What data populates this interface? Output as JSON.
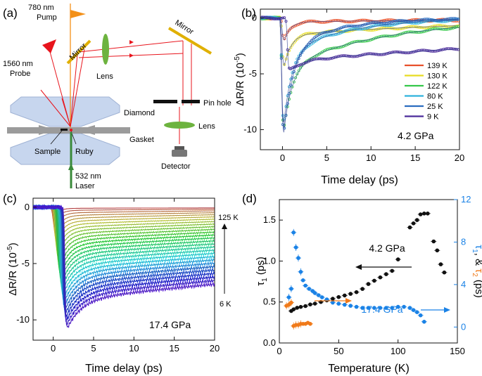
{
  "panels": {
    "a": {
      "letter": "(a)",
      "labels": {
        "pump": [
          "780 nm",
          "Pump"
        ],
        "probe": [
          "1560 nm",
          "Probe"
        ],
        "mirror_left": "Mirror",
        "mirror_right": "Mirror",
        "lens_top": "Lens",
        "lens_right": "Lens",
        "pin_hole": "Pin hole",
        "diamond": "Diamond",
        "gasket": "Gasket",
        "sample": "Sample",
        "ruby": "Ruby",
        "laser": [
          "532 nm",
          "Laser"
        ],
        "detector": "Detector"
      },
      "colors": {
        "beam": "#e8141c",
        "pump": "#f39019",
        "lens": "#6db33f",
        "mirror": "#e0b000",
        "diamond": "#c7d6ee",
        "laser": "#3a8a3a"
      }
    },
    "b": {
      "letter": "(b)",
      "pressure": "4.2 GPa",
      "xlabel": "Time delay (ps)",
      "ylabel": "ΔR/R (10",
      "ylabel_exp": "-5",
      "ylabel_close": ")",
      "xticks": [
        0,
        5,
        10,
        15,
        20
      ],
      "yticks": [
        0,
        -5,
        -10
      ],
      "legend": [
        {
          "label": "139 K",
          "color": "#e8502a"
        },
        {
          "label": "130 K",
          "color": "#e6dc22"
        },
        {
          "label": "122 K",
          "color": "#34c84a"
        },
        {
          "label": "80 K",
          "color": "#2fb2dc"
        },
        {
          "label": "25 K",
          "color": "#2a6cc0"
        },
        {
          "label": "9 K",
          "color": "#4a2a9a"
        }
      ]
    },
    "c": {
      "letter": "(c)",
      "pressure": "17.4 GPa",
      "xlabel": "Time delay (ps)",
      "ylabel": "ΔR/R (10",
      "ylabel_exp": "-5",
      "ylabel_close": ")",
      "xticks": [
        0,
        5,
        10,
        15,
        20
      ],
      "yticks": [
        0,
        -5,
        -10
      ],
      "top_label": "125 K",
      "bottom_label": "6 K"
    },
    "d": {
      "letter": "(d)",
      "label_42": "4.2 GPa",
      "label_174": "17.4 GPa",
      "xlabel": "Temperature (K)",
      "ylabel_left": "τ",
      "ylabel_left_sub": "1",
      "ylabel_left_unit": " (ps)",
      "ylabel_right_a": "τ",
      "ylabel_right_a_sub": "1",
      "ylabel_right_amp": ", & ",
      "ylabel_right_b": "τ",
      "ylabel_right_b_sub": "2",
      "ylabel_right_unit": " (ps)",
      "xticks": [
        0,
        50,
        100,
        150
      ],
      "yticks_left": [
        0.0,
        0.5,
        1.0,
        1.5
      ],
      "yticks_right": [
        0,
        4,
        8,
        12
      ]
    }
  },
  "chart_data": [
    {
      "panel": "b",
      "type": "line",
      "title": "4.2 GPa",
      "xlabel": "Time delay (ps)",
      "ylabel": "ΔR/R (10^-5)",
      "xlim": [
        -2.5,
        20
      ],
      "ylim": [
        -11.8,
        0.8
      ],
      "series": [
        {
          "name": "139 K",
          "color": "#e8502a",
          "min": -2.0,
          "tmin": 0.2,
          "tau_fast": 0.7,
          "plateau": -0.35,
          "tau_slow": 30
        },
        {
          "name": "130 K",
          "color": "#e6dc22",
          "min": -4.3,
          "tmin": 0.2,
          "tau_fast": 0.8,
          "plateau": -1.5,
          "tau_slow": 25
        },
        {
          "name": "122 K",
          "color": "#34c84a",
          "min": -10.0,
          "tmin": 0.15,
          "tau_fast": 1.0,
          "plateau": -4.3,
          "tau_slow": 12
        },
        {
          "name": "80 K",
          "color": "#2fb2dc",
          "min": -9.5,
          "tmin": 0.15,
          "tau_fast": 0.9,
          "plateau": -3.2,
          "tau_slow": 7
        },
        {
          "name": "25 K",
          "color": "#2a6cc0",
          "min": -10.4,
          "tmin": 0.15,
          "tau_fast": 1.1,
          "plateau": -2.6,
          "tau_slow": 6
        },
        {
          "name": "9 K",
          "color": "#4a2a9a",
          "min": -4.7,
          "tmin": 0.8,
          "tau_fast": 1.5,
          "plateau": -3.8,
          "tau_slow": 60
        }
      ]
    },
    {
      "panel": "c",
      "type": "line",
      "title": "17.4 GPa",
      "xlabel": "Time delay (ps)",
      "ylabel": "ΔR/R (10^-5)",
      "xlim": [
        -2.5,
        20
      ],
      "ylim": [
        -11.8,
        0.8
      ],
      "temperature_range": [
        "125 K",
        "6 K"
      ],
      "curve_count": 28,
      "series": [
        {
          "T": 125,
          "min": -0.8,
          "plateau": -0.1,
          "tau": 100
        },
        {
          "T": 6,
          "min": -10.8,
          "plateau": -8.2,
          "tau": 80
        }
      ]
    },
    {
      "panel": "d",
      "type": "scatter",
      "xlabel": "Temperature (K)",
      "xlim": [
        0,
        150
      ],
      "left_axis": {
        "label": "τ1 (ps)",
        "ylim": [
          0,
          1.75
        ]
      },
      "right_axis": {
        "label": "τ1, & τ2 (ps)",
        "ylim": [
          -1.5,
          12
        ]
      },
      "series": [
        {
          "name": "τ1 4.2 GPa",
          "axis": "left",
          "color": "#111111",
          "x": [
            10,
            12,
            15,
            18,
            22,
            26,
            30,
            35,
            40,
            45,
            50,
            55,
            60,
            65,
            70,
            75,
            80,
            85,
            90,
            95,
            100,
            110,
            113,
            116,
            119,
            122,
            125,
            130,
            133,
            136,
            139
          ],
          "y": [
            0.39,
            0.41,
            0.43,
            0.44,
            0.45,
            0.47,
            0.48,
            0.5,
            0.52,
            0.54,
            0.56,
            0.58,
            0.6,
            0.62,
            0.66,
            0.72,
            0.76,
            0.8,
            0.84,
            0.88,
            1.02,
            1.41,
            1.46,
            1.5,
            1.57,
            1.58,
            1.58,
            1.24,
            1.13,
            0.96,
            0.86
          ]
        },
        {
          "name": "τ1 17.4 GPa",
          "axis": "right",
          "color": "#1a82e6",
          "x": [
            8,
            10,
            12,
            14,
            16,
            18,
            20,
            22,
            25,
            28,
            30,
            33,
            36,
            40,
            45,
            50,
            55,
            60,
            65,
            70,
            75,
            80,
            85,
            90,
            95,
            100,
            105,
            110,
            113,
            116,
            119,
            122
          ],
          "y": [
            2.8,
            3.6,
            8.9,
            7.5,
            6.5,
            5.2,
            4.4,
            3.9,
            3.6,
            3.4,
            3.2,
            3.0,
            2.8,
            2.6,
            2.3,
            2.2,
            2.1,
            2.0,
            1.9,
            1.8,
            1.8,
            1.8,
            1.8,
            1.8,
            1.8,
            1.9,
            1.9,
            1.8,
            1.6,
            1.4,
            1.1,
            0.5
          ]
        },
        {
          "name": "τ2 17.4 GPa",
          "axis": "right",
          "color": "#f07a1a",
          "x": [
            6,
            8,
            10,
            12,
            14,
            16,
            18,
            20,
            22,
            24,
            26
          ],
          "y": [
            2.0,
            2.1,
            2.3,
            0.1,
            0.2,
            0.2,
            0.3,
            0.3,
            0.3,
            0.4,
            0.3
          ]
        }
      ]
    }
  ]
}
